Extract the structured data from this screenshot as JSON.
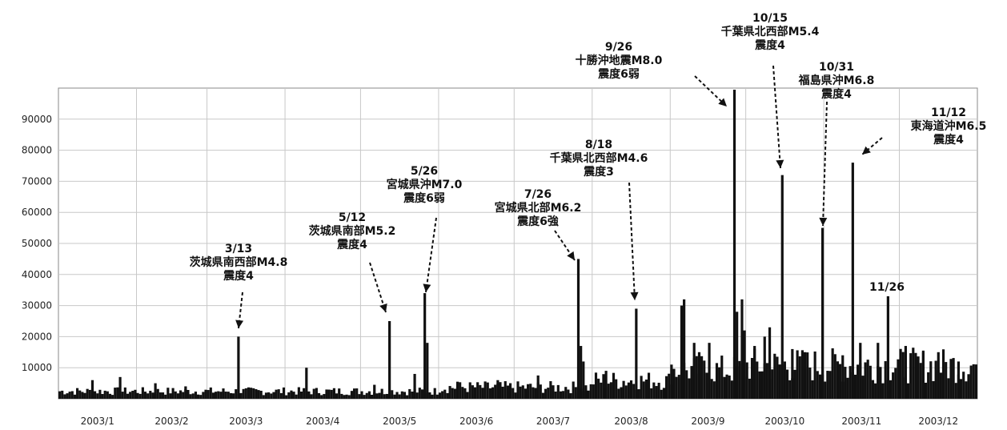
{
  "chart_data": {
    "type": "bar",
    "title": "",
    "xlabel": "",
    "ylabel": "",
    "ylim": [
      0,
      100000
    ],
    "yticks": [
      10000,
      20000,
      30000,
      40000,
      50000,
      60000,
      70000,
      80000,
      90000
    ],
    "xlim": [
      "2003-01-01",
      "2004-01-01"
    ],
    "month_labels": [
      "2003/1",
      "2003/2",
      "2003/3",
      "2003/4",
      "2003/5",
      "2003/6",
      "2003/7",
      "2003/8",
      "2003/9",
      "2003/10",
      "2003/11",
      "2003/12"
    ],
    "grid": true,
    "series": [
      {
        "values": [
          {
            "date": "2003-01-14",
            "value": 6000
          },
          {
            "date": "2003-01-25",
            "value": 7000
          },
          {
            "date": "2003-02-08",
            "value": 5000
          },
          {
            "date": "2003-02-20",
            "value": 4000
          },
          {
            "date": "2003-03-13",
            "value": 20000
          },
          {
            "date": "2003-04-09",
            "value": 10000
          },
          {
            "date": "2003-05-06",
            "value": 4500
          },
          {
            "date": "2003-05-12",
            "value": 25000
          },
          {
            "date": "2003-05-22",
            "value": 8000
          },
          {
            "date": "2003-05-26",
            "value": 34000
          },
          {
            "date": "2003-05-27",
            "value": 18000
          },
          {
            "date": "2003-06-08",
            "value": 5500
          },
          {
            "date": "2003-06-24",
            "value": 6000
          },
          {
            "date": "2003-07-10",
            "value": 7500
          },
          {
            "date": "2003-07-26",
            "value": 45000
          },
          {
            "date": "2003-07-27",
            "value": 17000
          },
          {
            "date": "2003-07-28",
            "value": 12000
          },
          {
            "date": "2003-08-06",
            "value": 9000
          },
          {
            "date": "2003-08-18",
            "value": 29000
          },
          {
            "date": "2003-09-01",
            "value": 11000
          },
          {
            "date": "2003-09-05",
            "value": 30000
          },
          {
            "date": "2003-09-06",
            "value": 32000
          },
          {
            "date": "2003-09-10",
            "value": 18000
          },
          {
            "date": "2003-09-12",
            "value": 15000
          },
          {
            "date": "2003-09-16",
            "value": 18000
          },
          {
            "date": "2003-09-26",
            "value": 100000
          },
          {
            "date": "2003-09-27",
            "value": 28000
          },
          {
            "date": "2003-09-29",
            "value": 32000
          },
          {
            "date": "2003-09-30",
            "value": 22000
          },
          {
            "date": "2003-10-04",
            "value": 17000
          },
          {
            "date": "2003-10-08",
            "value": 20000
          },
          {
            "date": "2003-10-10",
            "value": 23000
          },
          {
            "date": "2003-10-15",
            "value": 72000
          },
          {
            "date": "2003-10-19",
            "value": 16000
          },
          {
            "date": "2003-10-24",
            "value": 15000
          },
          {
            "date": "2003-10-31",
            "value": 55000
          },
          {
            "date": "2003-11-08",
            "value": 14000
          },
          {
            "date": "2003-11-12",
            "value": 76000
          },
          {
            "date": "2003-11-15",
            "value": 18000
          },
          {
            "date": "2003-11-22",
            "value": 18000
          },
          {
            "date": "2003-11-26",
            "value": 33000
          },
          {
            "date": "2003-12-03",
            "value": 17000
          },
          {
            "date": "2003-12-10",
            "value": 15000
          },
          {
            "date": "2003-12-16",
            "value": 15000
          },
          {
            "date": "2003-12-24",
            "value": 12000
          }
        ]
      }
    ],
    "baseline": [
      {
        "from": "2003-01-01",
        "to": "2003-06-01",
        "value": 2500
      },
      {
        "from": "2003-06-01",
        "to": "2003-08-01",
        "value": 3800
      },
      {
        "from": "2003-08-01",
        "to": "2003-09-01",
        "value": 6000
      },
      {
        "from": "2003-09-01",
        "to": "2003-10-01",
        "value": 9500
      },
      {
        "from": "2003-10-01",
        "to": "2004-01-01",
        "value": 11000
      }
    ],
    "annotations": [
      {
        "date": "2003-03-13",
        "lines": [
          "3/13",
          "茨城県南西部M4.8",
          "震度4"
        ],
        "target_value": 20000
      },
      {
        "date": "2003-05-12",
        "lines": [
          "5/12",
          "茨城県南部M5.2",
          "震度4"
        ],
        "target_value": 25000
      },
      {
        "date": "2003-05-26",
        "lines": [
          "5/26",
          "宮城県沖M7.0",
          "震度6弱"
        ],
        "target_value": 34000
      },
      {
        "date": "2003-07-26",
        "lines": [
          "7/26",
          "宮城県北部M6.2",
          "震度6強"
        ],
        "target_value": 45000
      },
      {
        "date": "2003-08-18",
        "lines": [
          "8/18",
          "千葉県北西部M4.6",
          "震度3"
        ],
        "target_value": 29000
      },
      {
        "date": "2003-09-26",
        "lines": [
          "9/26",
          "十勝沖地震M8.0",
          "震度6弱"
        ],
        "target_value": 100000
      },
      {
        "date": "2003-10-15",
        "lines": [
          "10/15",
          "千葉県北西部M5.4",
          "震度4"
        ],
        "target_value": 72000
      },
      {
        "date": "2003-10-31",
        "lines": [
          "10/31",
          "福島県沖M6.8",
          "震度4"
        ],
        "target_value": 55000
      },
      {
        "date": "2003-11-12",
        "lines": [
          "11/12",
          "東海道沖M6.5",
          "震度4"
        ],
        "target_value": 76000
      },
      {
        "date": "2003-11-26",
        "lines": [
          "11/26"
        ],
        "target_value": 33000
      }
    ]
  }
}
